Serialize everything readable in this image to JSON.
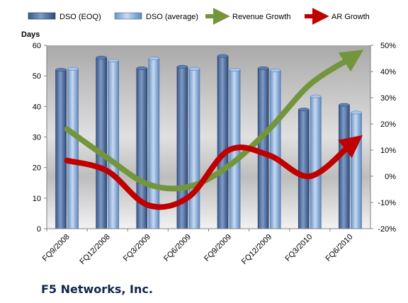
{
  "chart_data": {
    "type": "bar",
    "title": "",
    "footer_title": "F5 Networks, Inc.",
    "ylabel": "Days",
    "y2label": "",
    "categories": [
      "FQ9/2008",
      "FQ12/2008",
      "FQ3/2009",
      "FQ6/2009",
      "FQ9/2009",
      "FQ12/2009",
      "FQ3/2010",
      "FQ6/2010"
    ],
    "ylim": [
      0,
      60
    ],
    "yticks": [
      0,
      10,
      20,
      30,
      40,
      50,
      60
    ],
    "y2lim": [
      -20,
      50
    ],
    "y2ticks": [
      "-20%",
      "-10%",
      "0%",
      "10%",
      "20%",
      "30%",
      "40%",
      "50%"
    ],
    "series": [
      {
        "name": "DSO (EOQ)",
        "kind": "bar",
        "color": "#4f6fa0",
        "values": [
          52,
          56,
          52.5,
          53,
          56.5,
          52.5,
          39,
          40.5
        ]
      },
      {
        "name": "DSO (average)",
        "kind": "bar",
        "color": "#8fb3dd",
        "values": [
          52.3,
          55,
          55.7,
          52.3,
          52,
          51.8,
          43.3,
          38
        ]
      },
      {
        "name": "Revenue Growth",
        "kind": "line",
        "axis": "right",
        "color": "#73953c",
        "values": [
          18,
          7,
          -3,
          -4,
          4,
          18,
          35,
          45
        ]
      },
      {
        "name": "AR Growth",
        "kind": "line",
        "axis": "right",
        "color": "#c00000",
        "values": [
          6,
          2,
          -11,
          -8,
          10,
          8,
          0,
          12
        ]
      }
    ],
    "legend_position": "top",
    "grid": false
  }
}
